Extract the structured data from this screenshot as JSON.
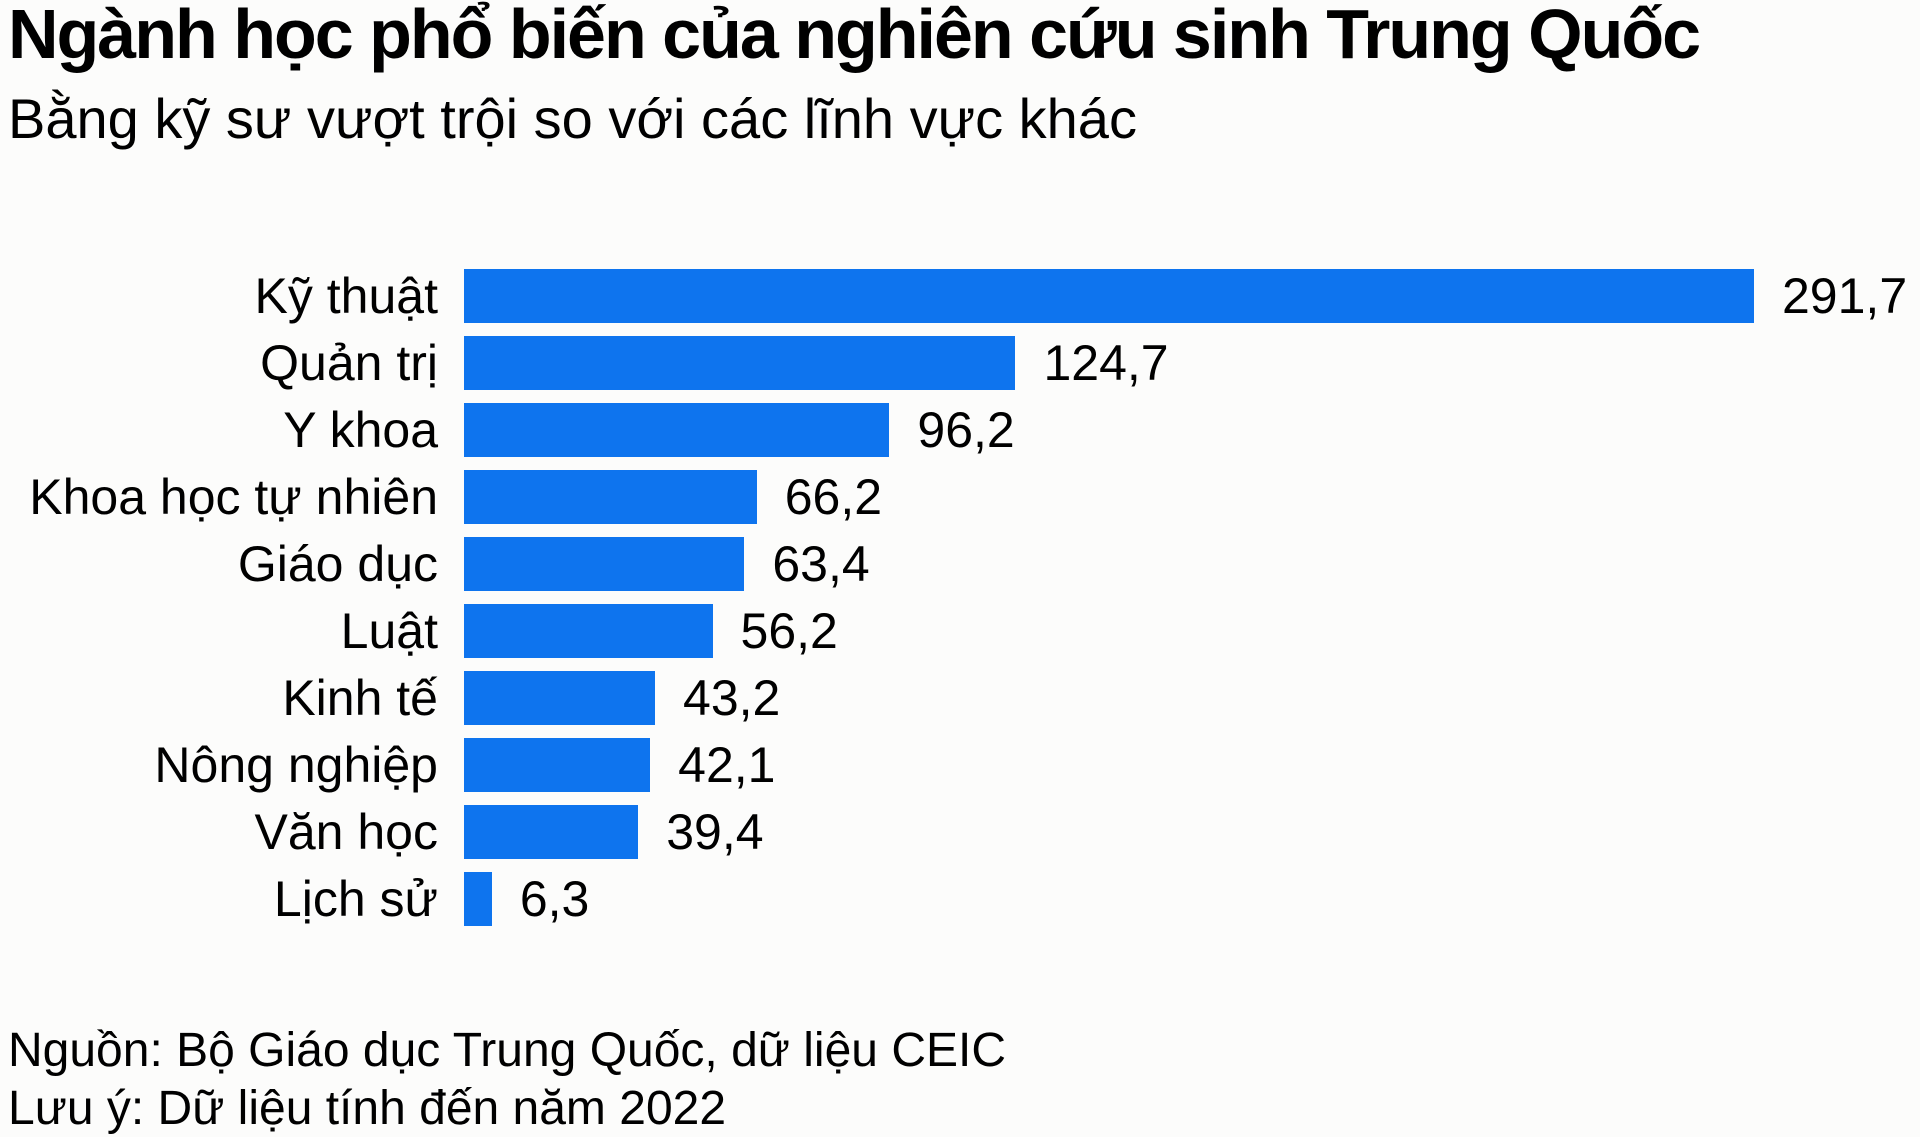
{
  "header": {
    "title": "Ngành học phổ biến của nghiên cứu sinh Trung Quốc",
    "subtitle": "Bằng kỹ sư vượt trội so với các lĩnh vực khác"
  },
  "chart_data": {
    "type": "bar",
    "orientation": "horizontal",
    "title": "Ngành học phổ biến của nghiên cứu sinh Trung Quốc",
    "subtitle": "Bằng kỹ sư vượt trội so với các lĩnh vực khác",
    "xlabel": "",
    "ylabel": "",
    "categories": [
      "Kỹ thuật",
      "Quản trị",
      "Y khoa",
      "Khoa học tự nhiên",
      "Giáo dục",
      "Luật",
      "Kinh tế",
      "Nông nghiệp",
      "Văn học",
      "Lịch sử"
    ],
    "values": [
      291.7,
      124.7,
      96.2,
      66.2,
      63.4,
      56.2,
      43.2,
      42.1,
      39.4,
      6.3
    ],
    "value_labels": [
      "291,7",
      "124,7",
      "96,2",
      "66,2",
      "63,4",
      "56,2",
      "43,2",
      "42,1",
      "39,4",
      "6,3"
    ],
    "xlim": [
      0,
      291.7
    ],
    "grid": false,
    "legend": false,
    "bar_color": "#0e74ee",
    "text_color": "#000000",
    "background_color": "#fcfcfb"
  },
  "footer": {
    "source": "Nguồn: Bộ Giáo dục Trung Quốc, dữ liệu CEIC",
    "note": "Lưu ý: Dữ liệu tính đến năm 2022"
  }
}
